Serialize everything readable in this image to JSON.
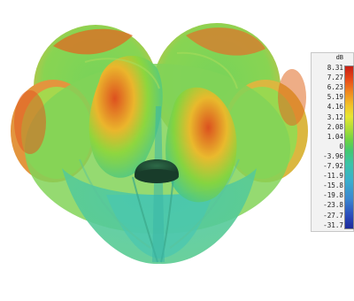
{
  "figure": {
    "description_icon": "radiation-pattern-3d",
    "colors": {
      "max": "#e0441a",
      "high": "#f0c02a",
      "mid": "#7ed23e",
      "low": "#3cc4a0",
      "core": "#1f4a32"
    }
  },
  "legend": {
    "unit": "dB",
    "ticks": [
      "8.31",
      "7.27",
      "6.23",
      "5.19",
      "4.16",
      "3.12",
      "2.08",
      "1.04",
      "0",
      "-3.96",
      "-7.92",
      "-11.9",
      "-15.8",
      "-19.8",
      "-23.8",
      "-27.7",
      "-31.7"
    ]
  }
}
